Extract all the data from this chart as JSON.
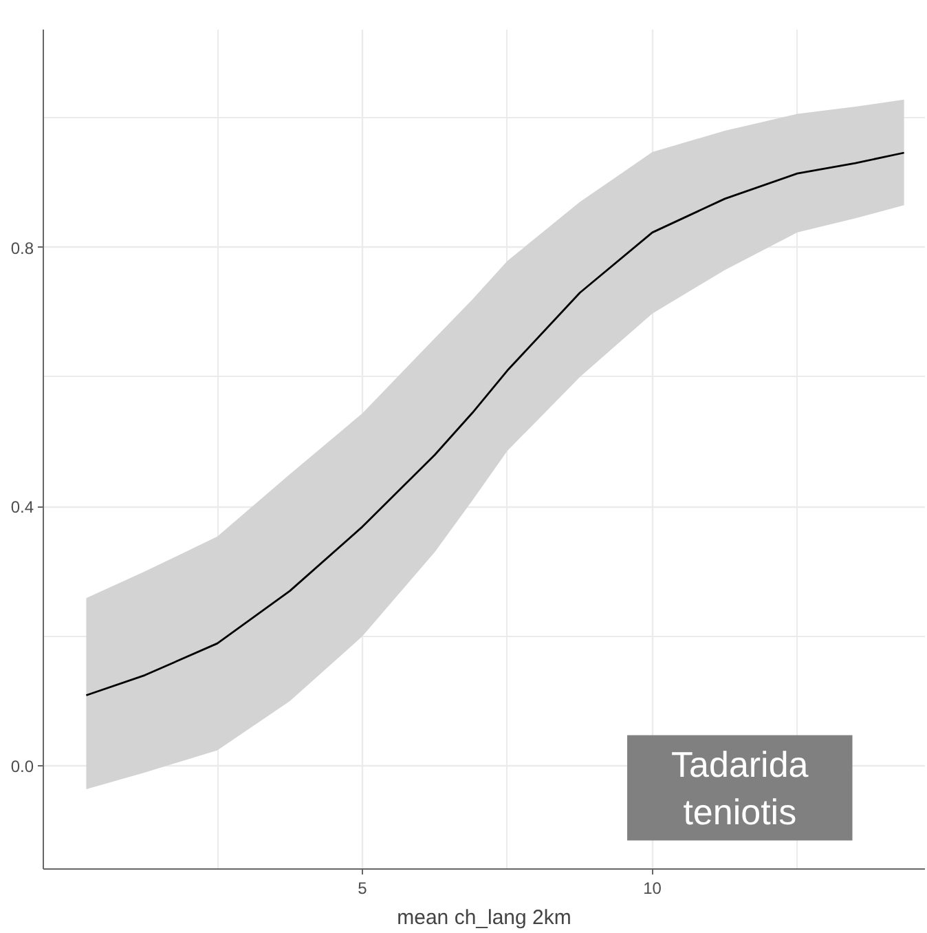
{
  "chart_data": {
    "type": "line",
    "xlabel": "mean ch_lang 2km",
    "x": [
      0.24,
      1.25,
      2.5,
      3.75,
      5,
      6.25,
      6.9,
      7.5,
      8.75,
      10,
      11.25,
      12.5,
      13.5,
      14.34
    ],
    "series": [
      {
        "color": "#000000",
        "values": [
          0.109,
          0.14,
          0.189,
          0.27,
          0.369,
          0.48,
          0.545,
          0.61,
          0.73,
          0.823,
          0.875,
          0.914,
          0.93,
          0.946
        ],
        "lower": [
          -0.036,
          -0.01,
          0.024,
          0.1,
          0.2,
          0.33,
          0.41,
          0.486,
          0.6,
          0.698,
          0.765,
          0.823,
          0.845,
          0.865
        ],
        "upper": [
          0.259,
          0.3,
          0.354,
          0.45,
          0.544,
          0.66,
          0.72,
          0.779,
          0.87,
          0.947,
          0.98,
          1.006,
          1.017,
          1.028
        ]
      }
    ],
    "xlim": [
      -0.5,
      14.7
    ],
    "ylim": [
      -0.159,
      1.136
    ],
    "xticks": [
      5,
      10
    ],
    "yticks": [
      {
        "value": 0,
        "label": "0.0"
      },
      {
        "value": 0.4,
        "label": "0.4"
      },
      {
        "value": 0.8,
        "label": "0.8"
      }
    ],
    "grid": true,
    "marker": "none",
    "line_style": "solid",
    "annotations": [
      "Tadarida teniotis"
    ]
  }
}
